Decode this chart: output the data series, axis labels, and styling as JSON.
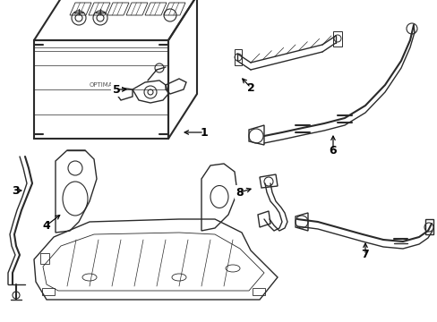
{
  "background_color": "#ffffff",
  "line_color": "#2a2a2a",
  "label_color": "#000000",
  "fig_width": 4.89,
  "fig_height": 3.6,
  "dpi": 100,
  "font_size_label": 9
}
